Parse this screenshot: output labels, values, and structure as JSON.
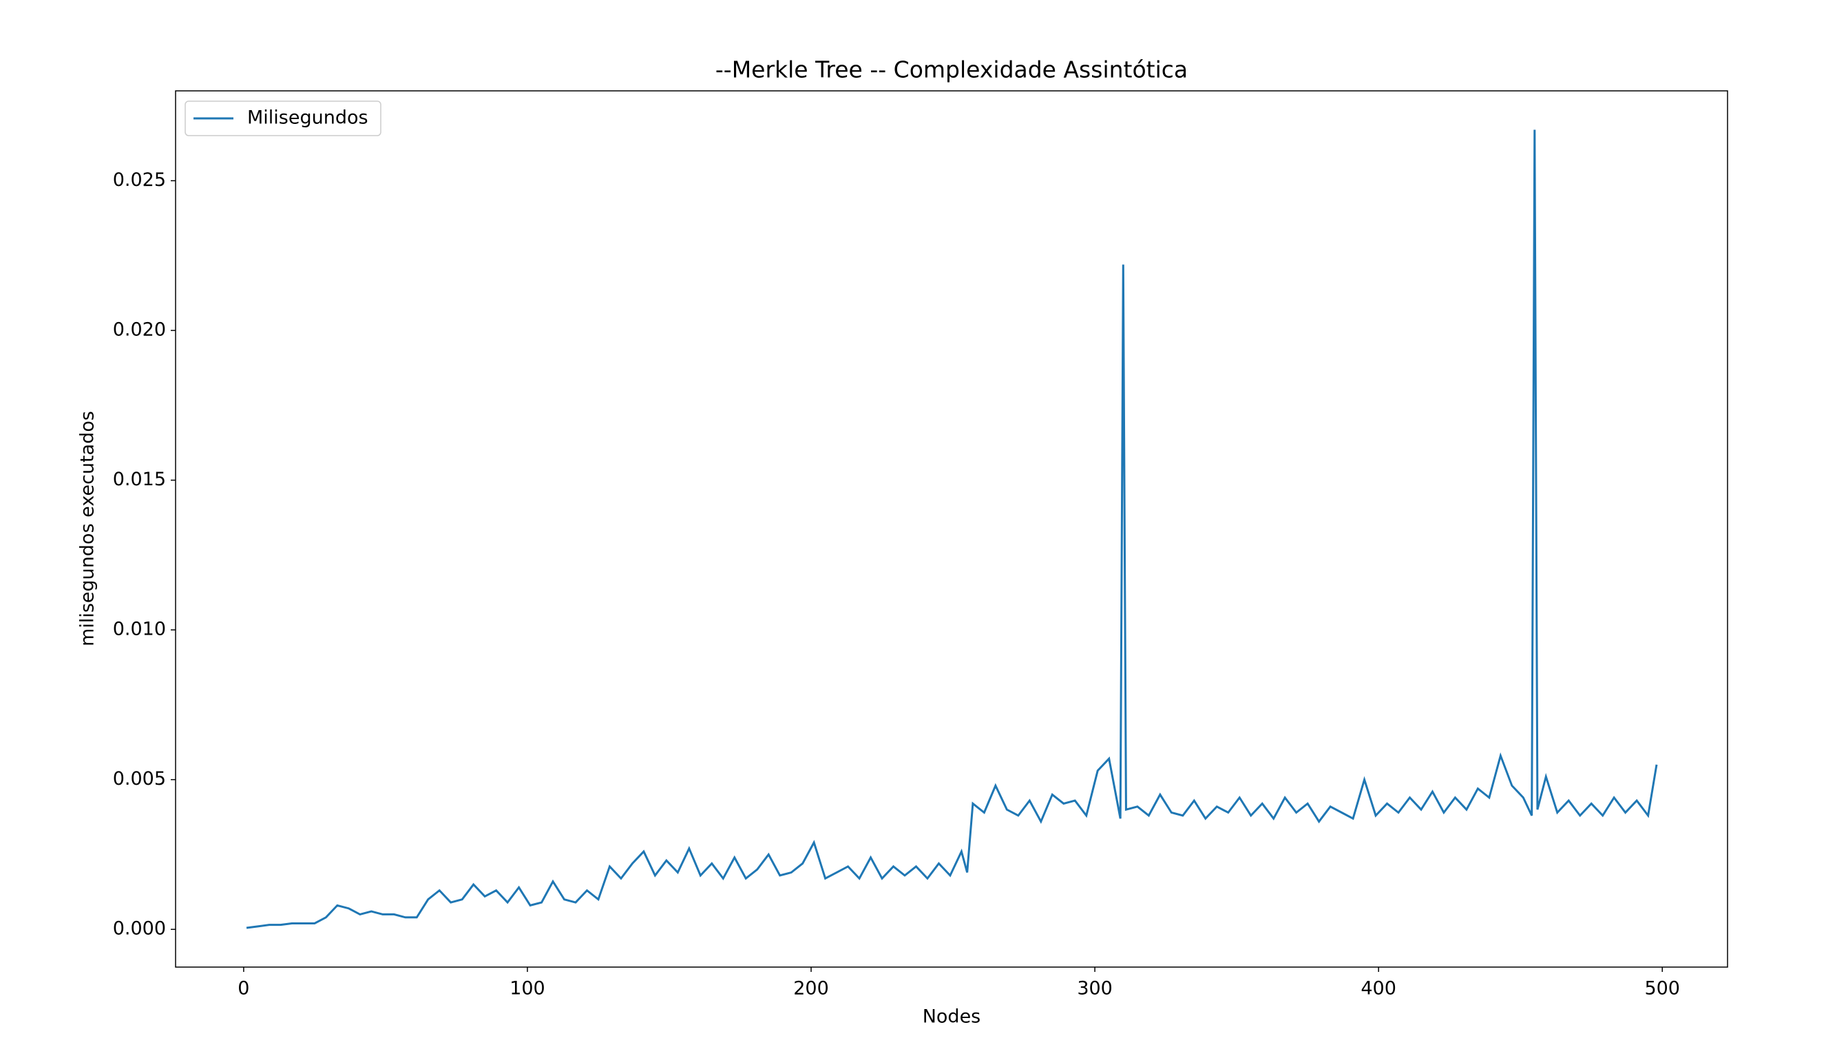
{
  "chart_data": {
    "type": "line",
    "title": "--Merkle Tree -- Complexidade Assintótica",
    "x_label": "Nodes",
    "y_label": "milisegundos executados",
    "legend": "upper left",
    "x": [
      1,
      5,
      9,
      13,
      17,
      21,
      25,
      29,
      33,
      37,
      41,
      45,
      49,
      53,
      57,
      61,
      65,
      69,
      73,
      77,
      81,
      85,
      89,
      93,
      97,
      101,
      105,
      109,
      113,
      117,
      121,
      125,
      129,
      133,
      137,
      141,
      145,
      149,
      153,
      157,
      161,
      165,
      169,
      173,
      177,
      181,
      185,
      189,
      193,
      197,
      201,
      205,
      209,
      213,
      217,
      221,
      225,
      229,
      233,
      237,
      241,
      245,
      249,
      253,
      255,
      257,
      261,
      265,
      269,
      273,
      277,
      281,
      285,
      289,
      293,
      297,
      301,
      305,
      309,
      310,
      311,
      315,
      319,
      323,
      327,
      331,
      335,
      339,
      343,
      347,
      351,
      355,
      359,
      363,
      367,
      371,
      375,
      379,
      383,
      387,
      391,
      395,
      399,
      403,
      407,
      411,
      415,
      419,
      423,
      427,
      431,
      435,
      439,
      443,
      447,
      451,
      454,
      455,
      456,
      459,
      463,
      467,
      471,
      475,
      479,
      483,
      487,
      491,
      495,
      498
    ],
    "series": [
      {
        "name": "Milisegundos",
        "color": "#1f77b4",
        "values": [
          5e-05,
          0.0001,
          0.00015,
          0.00015,
          0.0002,
          0.0002,
          0.0002,
          0.0004,
          0.0008,
          0.0007,
          0.0005,
          0.0006,
          0.0005,
          0.0005,
          0.0004,
          0.0004,
          0.001,
          0.0013,
          0.0009,
          0.001,
          0.0015,
          0.0011,
          0.0013,
          0.0009,
          0.0014,
          0.0008,
          0.0009,
          0.0016,
          0.001,
          0.0009,
          0.0013,
          0.001,
          0.0021,
          0.0017,
          0.0022,
          0.0026,
          0.0018,
          0.0023,
          0.0019,
          0.0027,
          0.0018,
          0.0022,
          0.0017,
          0.0024,
          0.0017,
          0.002,
          0.0025,
          0.0018,
          0.0019,
          0.0022,
          0.0029,
          0.0017,
          0.0019,
          0.0021,
          0.0017,
          0.0024,
          0.0017,
          0.0021,
          0.0018,
          0.0021,
          0.0017,
          0.0022,
          0.0018,
          0.0026,
          0.0019,
          0.0042,
          0.0039,
          0.0048,
          0.004,
          0.0038,
          0.0043,
          0.0036,
          0.0045,
          0.0042,
          0.0043,
          0.0038,
          0.0053,
          0.0057,
          0.0037,
          0.0222,
          0.004,
          0.0041,
          0.0038,
          0.0045,
          0.0039,
          0.0038,
          0.0043,
          0.0037,
          0.0041,
          0.0039,
          0.0044,
          0.0038,
          0.0042,
          0.0037,
          0.0044,
          0.0039,
          0.0042,
          0.0036,
          0.0041,
          0.0039,
          0.0037,
          0.005,
          0.0038,
          0.0042,
          0.0039,
          0.0044,
          0.004,
          0.0046,
          0.0039,
          0.0044,
          0.004,
          0.0047,
          0.0044,
          0.0058,
          0.0048,
          0.0044,
          0.0038,
          0.0267,
          0.004,
          0.0051,
          0.0039,
          0.0043,
          0.0038,
          0.0042,
          0.0038,
          0.0044,
          0.0039,
          0.0043,
          0.0038,
          0.0055
        ]
      }
    ],
    "xlim": [
      -24,
      523
    ],
    "xticks": [
      0,
      100,
      200,
      300,
      400,
      500
    ],
    "ylim": [
      -0.00126,
      0.028
    ],
    "yticks": [
      {
        "value": 0,
        "label": "0.000"
      },
      0.005,
      {
        "value": 0.01,
        "label": "0.010"
      },
      0.015,
      {
        "value": 0.02,
        "label": "0.020"
      },
      0.025
    ]
  }
}
